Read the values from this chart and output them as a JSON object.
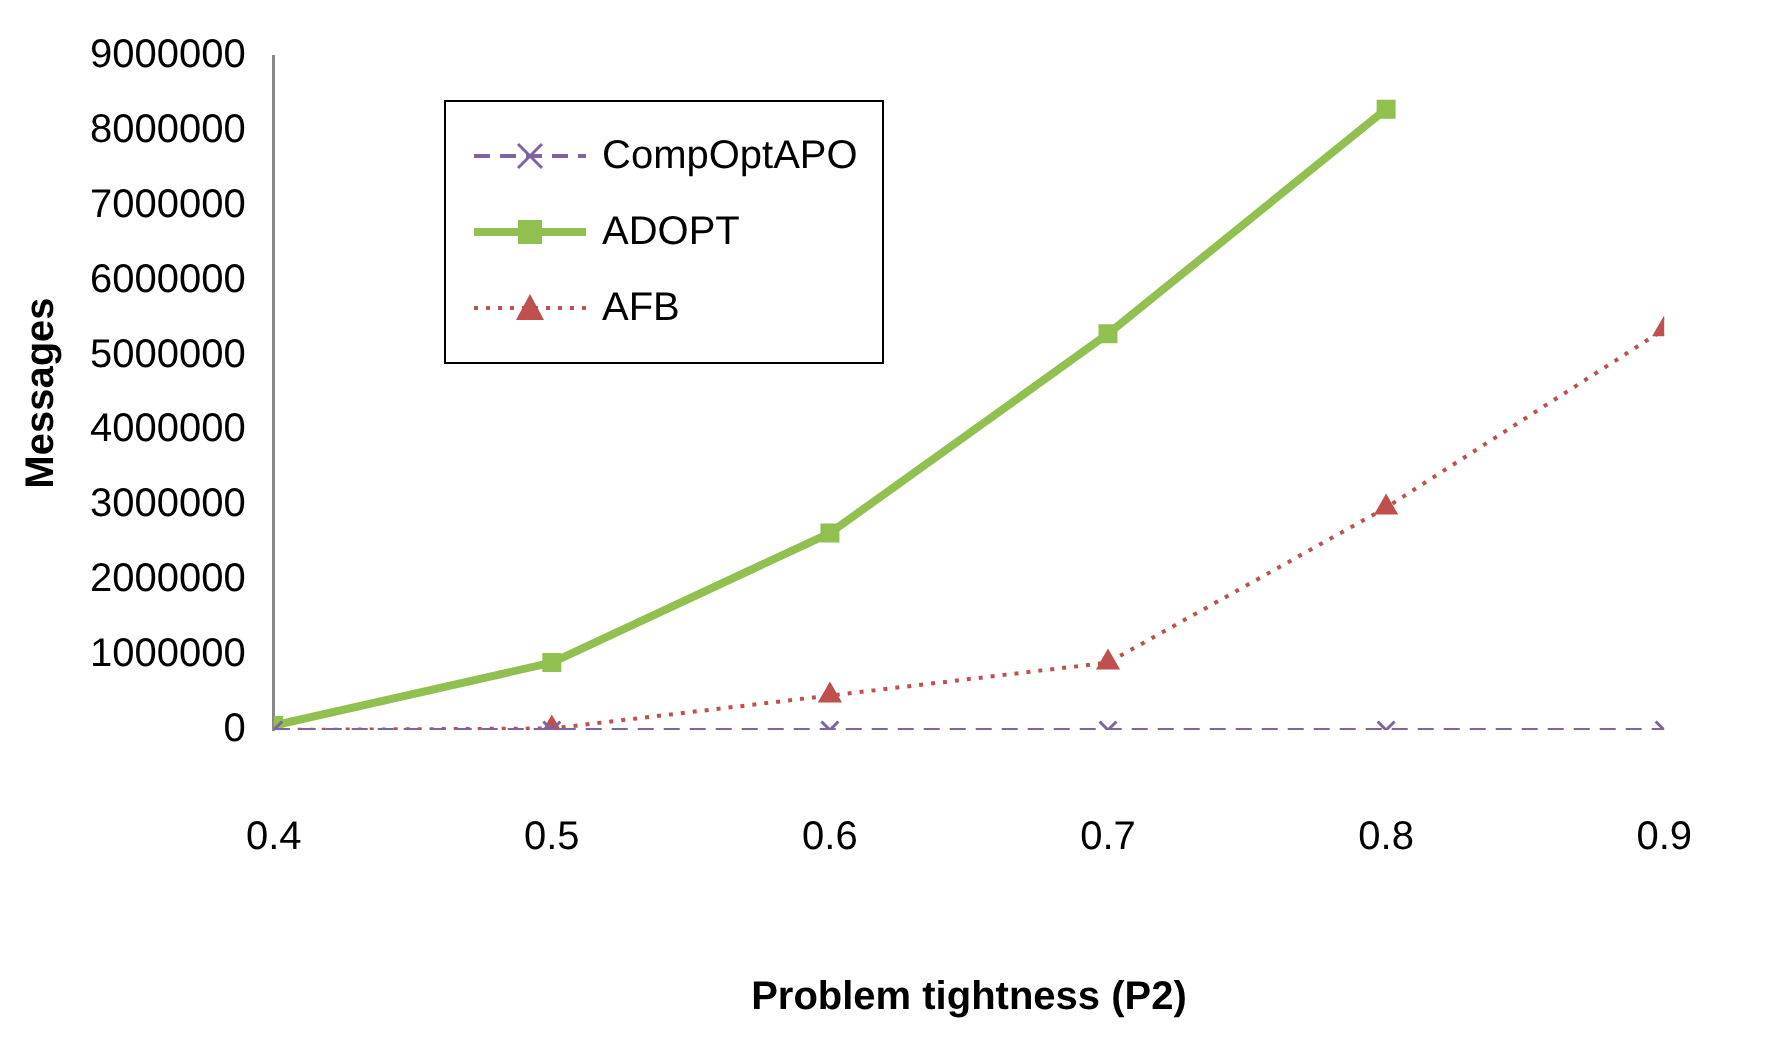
{
  "chart_data": {
    "type": "line",
    "xlabel": "Problem tightness (P2)",
    "ylabel": "Messages",
    "x": [
      0.4,
      0.5,
      0.6,
      0.7,
      0.8,
      0.9
    ],
    "series": [
      {
        "name": "CompOptAPO",
        "color": "#7f64a2",
        "values": [
          0,
          0,
          0,
          0,
          0,
          0
        ],
        "marker": "cross",
        "line_style": "dashed"
      },
      {
        "name": "ADOPT",
        "color": "#92c050",
        "values": [
          60000,
          900000,
          2630000,
          5290000,
          8290000,
          null
        ],
        "marker": "square",
        "line_style": "solid"
      },
      {
        "name": "AFB",
        "color": "#c0504d",
        "values": [
          0,
          20000,
          460000,
          900000,
          2970000,
          5350000
        ],
        "marker": "triangle",
        "line_style": "dotted"
      }
    ],
    "xlim": [
      0.4,
      0.9
    ],
    "xticks": [
      0.4,
      0.5,
      0.6,
      0.7,
      0.8,
      0.9
    ],
    "ylim": [
      0,
      9000000
    ],
    "yticks": [
      0,
      1000000,
      2000000,
      3000000,
      4000000,
      5000000,
      6000000,
      7000000,
      8000000,
      9000000
    ],
    "grid": false,
    "legend": "top left"
  }
}
